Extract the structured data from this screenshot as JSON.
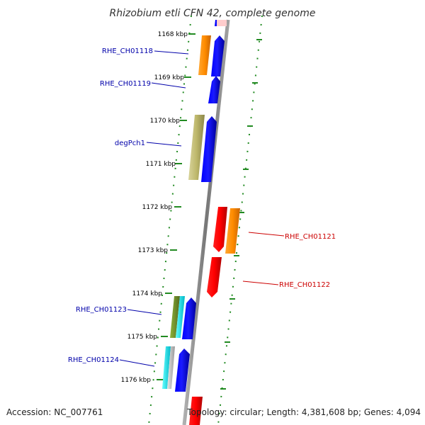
{
  "title": "Rhizobium etli CFN 42, complete genome",
  "footer": {
    "accession": "Accession: NC_007761",
    "topology": "Topology: circular; Length: 4,381,608 bp; Genes: 4,094"
  },
  "ticks": [
    "1168 kbp",
    "1169 kbp",
    "1170 kbp",
    "1171 kbp",
    "1172 kbp",
    "1173 kbp",
    "1174 kbp",
    "1175 kbp",
    "1176 kbp"
  ],
  "genes": {
    "fwd": [
      "RHE_CH01118",
      "RHE_CH01119",
      "degPch1",
      "RHE_CH01123",
      "RHE_CH01124"
    ],
    "rev": [
      "RHE_CH01121",
      "RHE_CH01122"
    ]
  },
  "colors": {
    "backbone": "#888888",
    "forward_gene": "#0000ee",
    "reverse_gene": "#ff0000",
    "orange_feature": "#ff8c00",
    "khaki_feature": "#bdb76b",
    "olive_feature": "#6b8e23",
    "cyan_feature": "#00e0e0",
    "grey_feature": "#bbbbbb",
    "pink_feature": "#ffcccc",
    "dot_track": "#228b22"
  }
}
